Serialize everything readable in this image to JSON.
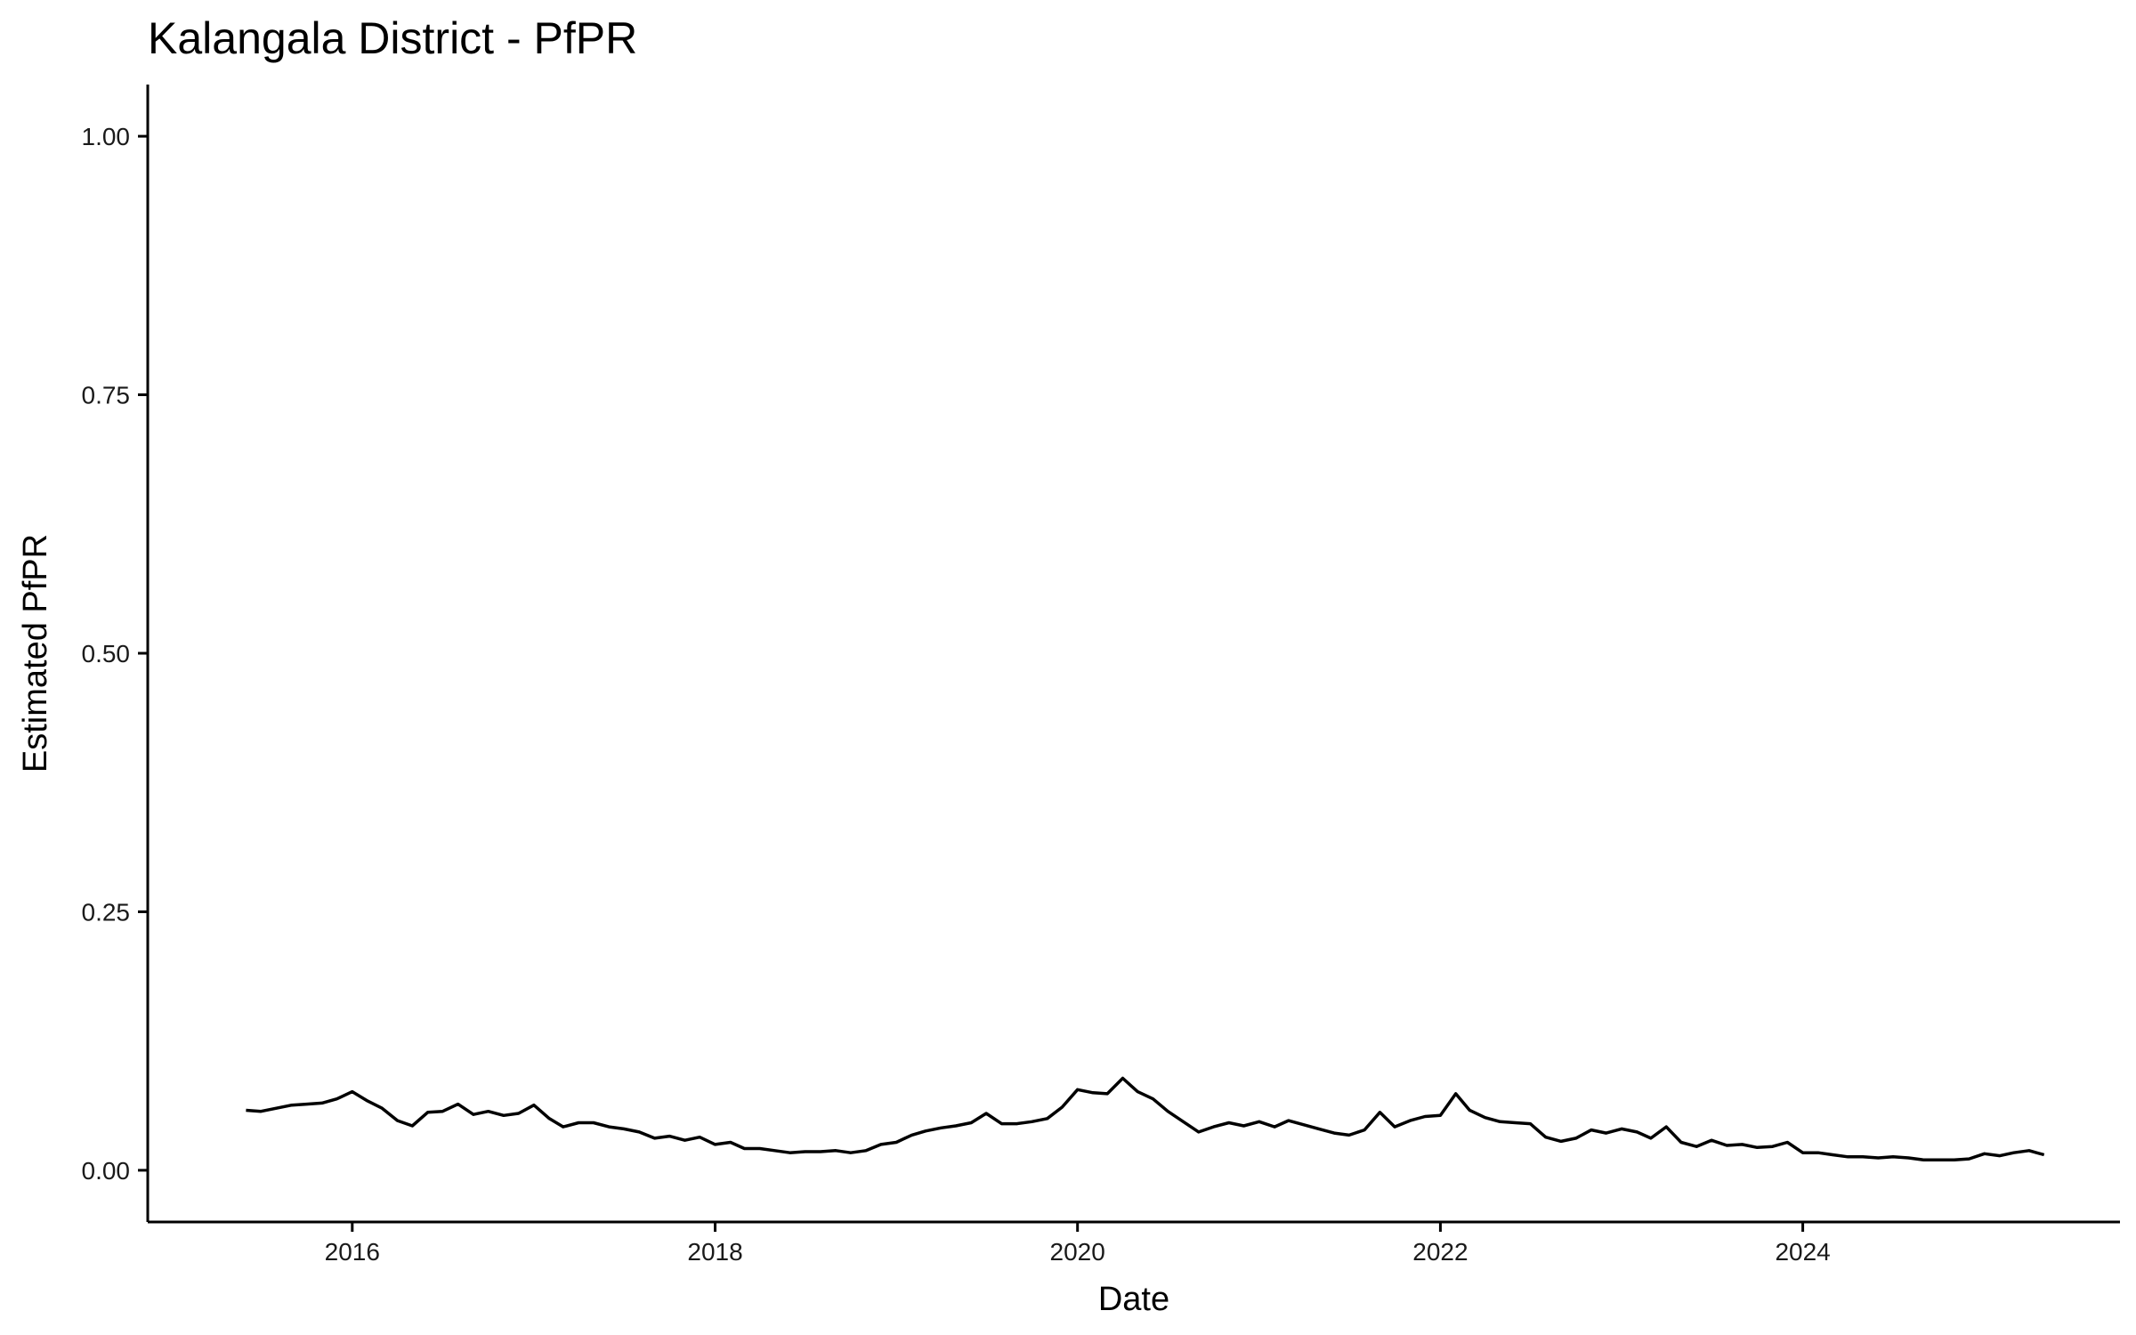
{
  "chart_data": {
    "type": "line",
    "title": "Kalangala District - PfPR",
    "xlabel": "Date",
    "ylabel": "Estimated PfPR",
    "xlim": [
      "2014-11-15",
      "2025-10-01"
    ],
    "ylim": [
      -0.05,
      1.05
    ],
    "x_ticks": [
      "2016",
      "2018",
      "2020",
      "2022",
      "2024"
    ],
    "y_ticks": [
      "0.00",
      "0.25",
      "0.50",
      "0.75",
      "1.00"
    ],
    "grid": false,
    "legend": "none",
    "line_color": "#000000",
    "series": [
      {
        "x": [
          "2015-06",
          "2015-07",
          "2015-08",
          "2015-09",
          "2015-10",
          "2015-11",
          "2015-12",
          "2016-01",
          "2016-02",
          "2016-03",
          "2016-04",
          "2016-05",
          "2016-06",
          "2016-07",
          "2016-08",
          "2016-09",
          "2016-10",
          "2016-11",
          "2016-12",
          "2017-01",
          "2017-02",
          "2017-03",
          "2017-04",
          "2017-05",
          "2017-06",
          "2017-07",
          "2017-08",
          "2017-09",
          "2017-10",
          "2017-11",
          "2017-12",
          "2018-01",
          "2018-02",
          "2018-03",
          "2018-04",
          "2018-05",
          "2018-06",
          "2018-07",
          "2018-08",
          "2018-09",
          "2018-10",
          "2018-11",
          "2018-12",
          "2019-01",
          "2019-02",
          "2019-03",
          "2019-04",
          "2019-05",
          "2019-06",
          "2019-07",
          "2019-08",
          "2019-09",
          "2019-10",
          "2019-11",
          "2019-12",
          "2020-01",
          "2020-02",
          "2020-03",
          "2020-04",
          "2020-05",
          "2020-06",
          "2020-07",
          "2020-08",
          "2020-09",
          "2020-10",
          "2020-11",
          "2020-12",
          "2021-01",
          "2021-02",
          "2021-03",
          "2021-04",
          "2021-05",
          "2021-06",
          "2021-07",
          "2021-08",
          "2021-09",
          "2021-10",
          "2021-11",
          "2021-12",
          "2022-01",
          "2022-02",
          "2022-03",
          "2022-04",
          "2022-05",
          "2022-06",
          "2022-07",
          "2022-08",
          "2022-09",
          "2022-10",
          "2022-11",
          "2022-12",
          "2023-01",
          "2023-02",
          "2023-03",
          "2023-04",
          "2023-05",
          "2023-06",
          "2023-07",
          "2023-08",
          "2023-09",
          "2023-10",
          "2023-11",
          "2023-12",
          "2024-01",
          "2024-02",
          "2024-03",
          "2024-04",
          "2024-05",
          "2024-06",
          "2024-07",
          "2024-08",
          "2024-09",
          "2024-10",
          "2024-11",
          "2024-12",
          "2025-01",
          "2025-02",
          "2025-03",
          "2025-04",
          "2025-05"
        ],
        "values": [
          0.058,
          0.057,
          0.06,
          0.063,
          0.064,
          0.065,
          0.069,
          0.076,
          0.067,
          0.06,
          0.048,
          0.043,
          0.056,
          0.057,
          0.064,
          0.054,
          0.057,
          0.053,
          0.055,
          0.063,
          0.05,
          0.042,
          0.046,
          0.046,
          0.042,
          0.04,
          0.037,
          0.031,
          0.033,
          0.029,
          0.032,
          0.025,
          0.027,
          0.021,
          0.021,
          0.019,
          0.017,
          0.018,
          0.018,
          0.019,
          0.017,
          0.019,
          0.025,
          0.027,
          0.034,
          0.038,
          0.041,
          0.043,
          0.046,
          0.055,
          0.045,
          0.045,
          0.047,
          0.05,
          0.061,
          0.078,
          0.075,
          0.074,
          0.089,
          0.076,
          0.069,
          0.057,
          0.047,
          0.037,
          0.042,
          0.046,
          0.043,
          0.047,
          0.042,
          0.048,
          0.044,
          0.04,
          0.036,
          0.034,
          0.039,
          0.056,
          0.042,
          0.048,
          0.052,
          0.053,
          0.074,
          0.058,
          0.051,
          0.047,
          0.046,
          0.045,
          0.032,
          0.028,
          0.031,
          0.039,
          0.036,
          0.04,
          0.037,
          0.031,
          0.042,
          0.027,
          0.023,
          0.029,
          0.024,
          0.025,
          0.022,
          0.023,
          0.027,
          0.017,
          0.017,
          0.015,
          0.013,
          0.013,
          0.012,
          0.013,
          0.012,
          0.01,
          0.01,
          0.01,
          0.011,
          0.016,
          0.014,
          0.017,
          0.019,
          0.015
        ]
      }
    ]
  }
}
